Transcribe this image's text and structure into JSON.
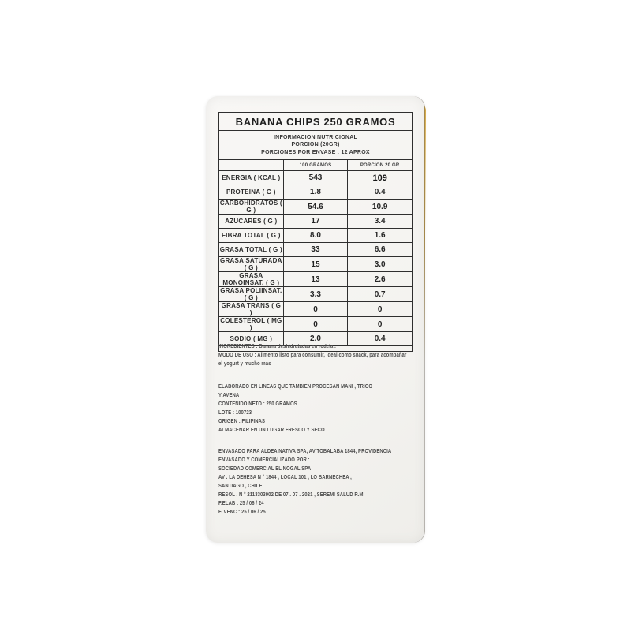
{
  "colors": {
    "package_edge_yellow": "#e0ac43",
    "label_background": "#f6f5f2",
    "ink": "#2f2f2f"
  },
  "product": {
    "title": "BANANA CHIPS 250 GRAMOS"
  },
  "nutrition": {
    "heading_lines": [
      "INFORMACION NUTRICIONAL",
      "PORCION (20GR)",
      "PORCIONES POR ENVASE : 12 APROX"
    ],
    "columns": [
      "100 GRAMOS",
      "PORCION 20 GR"
    ],
    "rows": [
      {
        "label": "ENERGIA ( KCAL )",
        "per100g": "543",
        "per20g": "109"
      },
      {
        "label": "PROTEINA ( G )",
        "per100g": "1.8",
        "per20g": "0.4"
      },
      {
        "label": "CARBOHIDRATOS ( G )",
        "per100g": "54.6",
        "per20g": "10.9"
      },
      {
        "label": "AZUCARES ( G )",
        "per100g": "17",
        "per20g": "3.4"
      },
      {
        "label": "FIBRA TOTAL ( G )",
        "per100g": "8.0",
        "per20g": "1.6"
      },
      {
        "label": "GRASA TOTAL ( G )",
        "per100g": "33",
        "per20g": "6.6"
      },
      {
        "label": "GRASA SATURADA ( G )",
        "per100g": "15",
        "per20g": "3.0"
      },
      {
        "label": "GRASA MONOINSAT. ( G )",
        "per100g": "13",
        "per20g": "2.6"
      },
      {
        "label": "GRASA POLIINSAT. ( G )",
        "per100g": "3.3",
        "per20g": "0.7"
      },
      {
        "label": "GRASA TRANS ( G )",
        "per100g": "0",
        "per20g": "0"
      },
      {
        "label": "COLESTEROL ( MG )",
        "per100g": "0",
        "per20g": "0"
      },
      {
        "label": "SODIO ( MG )",
        "per100g": "2.0",
        "per20g": "0.4"
      }
    ]
  },
  "details": {
    "ingredientes": "INGREDIENTES : Banana deshidratadas en rodela .",
    "modo_lines": [
      "MODO DE USO : Alimento listo para consumir, ideal como snack, para acompañar",
      "el yogurt y mucho mas"
    ],
    "production_lines": [
      "ELABORADO EN LINEAS QUE TAMBIEN PROCESAN MANI , TRIGO",
      "Y AVENA",
      "CONTENIDO NETO : 250 GRAMOS",
      "LOTE : 100723",
      "ORIGEN : FILIPINAS",
      "ALMACENAR EN UN LUGAR FRESCO Y SECO"
    ],
    "distribution_lines": [
      "ENVASADO PARA ALDEA NATIVA SPA, AV TOBALABA 1844, PROVIDENCIA",
      "ENVASADO Y COMERCIALIZADO POR :",
      "SOCIEDAD COMERCIAL EL NOGAL SPA",
      "AV . LA DEHESA N ° 1844 , LOCAL 101 , LO BARNECHEA ,",
      "SANTIAGO , CHILE",
      "RESOL . N ° 2113303902 DE 07 . 07 . 2021 , SEREMI SALUD R.M",
      "F.ELAB : 25 / 06 / 24",
      "F. VENC : 25 / 06 / 25"
    ]
  }
}
